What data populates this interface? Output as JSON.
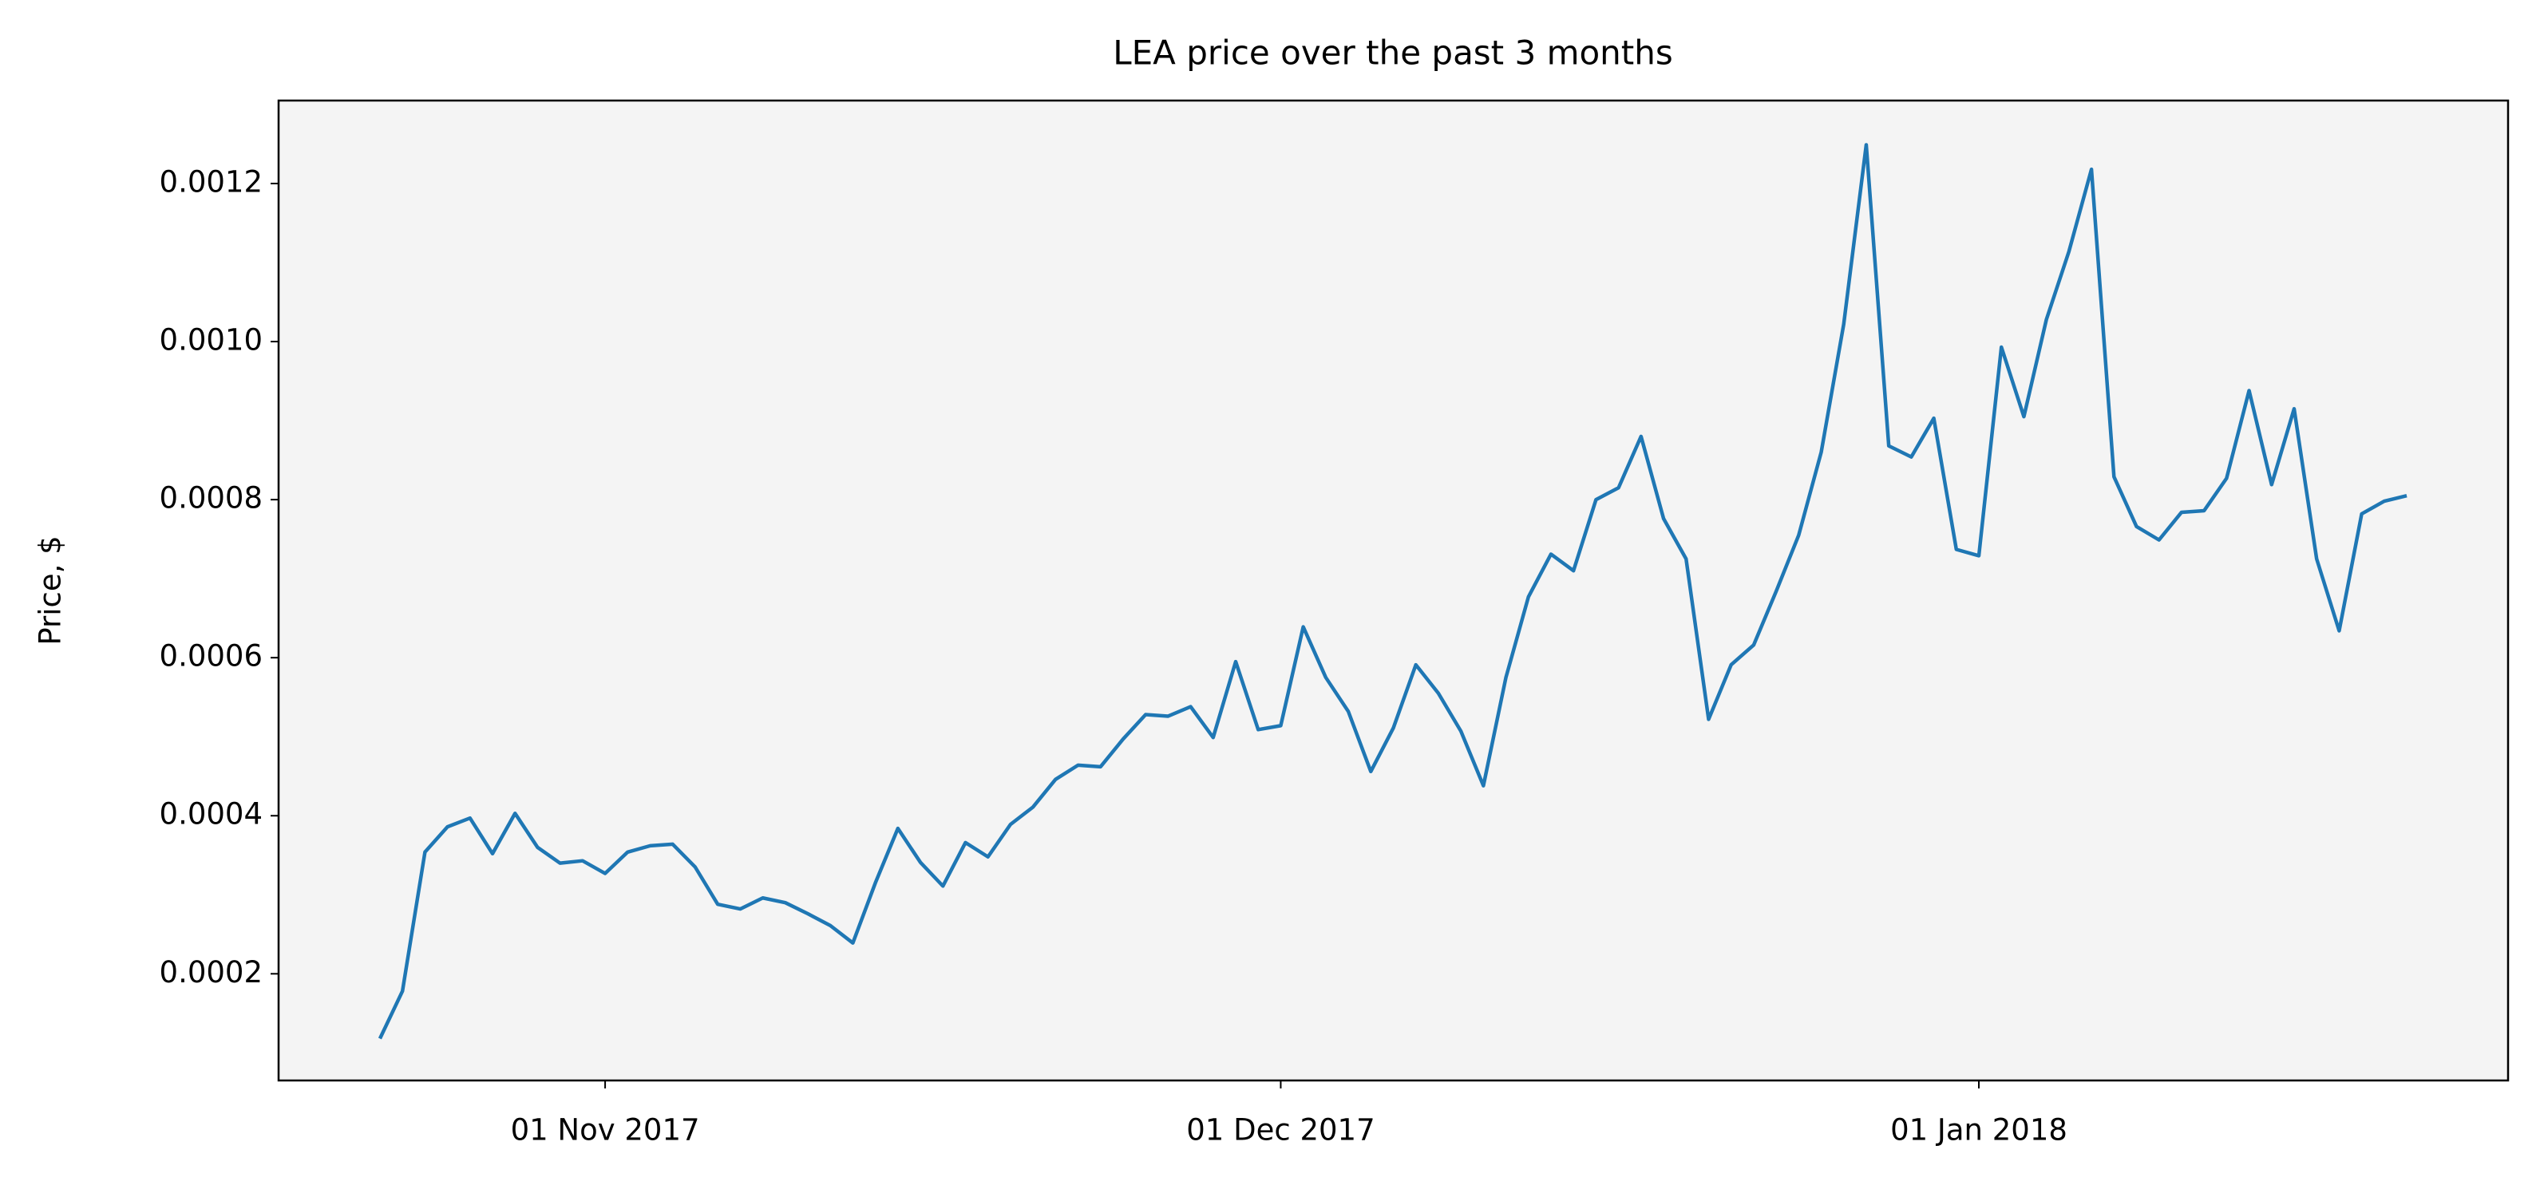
{
  "chart_data": {
    "type": "line",
    "title": "LEA price over the past 3 months",
    "y_label": "Price, $",
    "x": [
      "2017-10-22",
      "2017-10-23",
      "2017-10-24",
      "2017-10-25",
      "2017-10-26",
      "2017-10-27",
      "2017-10-28",
      "2017-10-29",
      "2017-10-30",
      "2017-10-31",
      "2017-11-01",
      "2017-11-02",
      "2017-11-03",
      "2017-11-04",
      "2017-11-05",
      "2017-11-06",
      "2017-11-07",
      "2017-11-08",
      "2017-11-09",
      "2017-11-10",
      "2017-11-11",
      "2017-11-12",
      "2017-11-13",
      "2017-11-14",
      "2017-11-15",
      "2017-11-16",
      "2017-11-17",
      "2017-11-18",
      "2017-11-19",
      "2017-11-20",
      "2017-11-21",
      "2017-11-22",
      "2017-11-23",
      "2017-11-24",
      "2017-11-25",
      "2017-11-26",
      "2017-11-27",
      "2017-11-28",
      "2017-11-29",
      "2017-11-30",
      "2017-12-01",
      "2017-12-02",
      "2017-12-03",
      "2017-12-04",
      "2017-12-05",
      "2017-12-06",
      "2017-12-07",
      "2017-12-08",
      "2017-12-09",
      "2017-12-10",
      "2017-12-11",
      "2017-12-12",
      "2017-12-13",
      "2017-12-14",
      "2017-12-15",
      "2017-12-16",
      "2017-12-17",
      "2017-12-18",
      "2017-12-19",
      "2017-12-20",
      "2017-12-21",
      "2017-12-22",
      "2017-12-23",
      "2017-12-24",
      "2017-12-25",
      "2017-12-26",
      "2017-12-27",
      "2017-12-28",
      "2017-12-29",
      "2017-12-30",
      "2017-12-31",
      "2018-01-01",
      "2018-01-02",
      "2018-01-03",
      "2018-01-04",
      "2018-01-05",
      "2018-01-06",
      "2018-01-07",
      "2018-01-08",
      "2018-01-09",
      "2018-01-10",
      "2018-01-11",
      "2018-01-12",
      "2018-01-13",
      "2018-01-14",
      "2018-01-15",
      "2018-01-16",
      "2018-01-17",
      "2018-01-18",
      "2018-01-19",
      "2018-01-20"
    ],
    "series": [
      {
        "color": "#1f77b4",
        "values": [
          0.000118,
          0.000178,
          0.000354,
          0.000386,
          0.000397,
          0.000352,
          0.000403,
          0.00036,
          0.00034,
          0.000343,
          0.000327,
          0.000354,
          0.000362,
          0.000364,
          0.000335,
          0.000288,
          0.000282,
          0.000296,
          0.00029,
          0.000276,
          0.000261,
          0.000239,
          0.000315,
          0.000384,
          0.000341,
          0.000311,
          0.000366,
          0.000348,
          0.000389,
          0.000411,
          0.000446,
          0.000464,
          0.000462,
          0.000497,
          0.000528,
          0.000526,
          0.000538,
          0.000499,
          0.000595,
          0.000509,
          0.000514,
          0.000639,
          0.000575,
          0.000532,
          0.000456,
          0.000511,
          0.000591,
          0.000555,
          0.000507,
          0.000438,
          0.000575,
          0.000677,
          0.000731,
          0.00071,
          0.0008,
          0.000815,
          0.00088,
          0.000776,
          0.000725,
          0.000522,
          0.000591,
          0.000616,
          0.000684,
          0.000755,
          0.00086,
          0.001022,
          0.001249,
          0.000868,
          0.000854,
          0.000903,
          0.000737,
          0.000729,
          0.000993,
          0.000905,
          0.001028,
          0.001114,
          0.001218,
          0.000829,
          0.000766,
          0.000749,
          0.000784,
          0.000786,
          0.000827,
          0.000938,
          0.000819,
          0.000915,
          0.000725,
          0.000634,
          0.000782,
          0.000798,
          0.000805
        ]
      }
    ],
    "xlim": [
      "2017-10-17T12:00Z",
      "2018-01-24T12:00Z"
    ],
    "xticks": [
      {
        "value": "2017-11-01",
        "label": "01 Nov 2017"
      },
      {
        "value": "2017-12-01",
        "label": "01 Dec 2017"
      },
      {
        "value": "2018-01-01",
        "label": "01 Jan 2018"
      }
    ],
    "ylim": [
      6.5e-05,
      0.001305
    ],
    "yticks": [
      0.0002,
      0.0004,
      0.0006,
      0.0008,
      {
        "value": 0.001,
        "label": "0.0010"
      },
      0.0012
    ],
    "background": "#f4f4f4"
  }
}
